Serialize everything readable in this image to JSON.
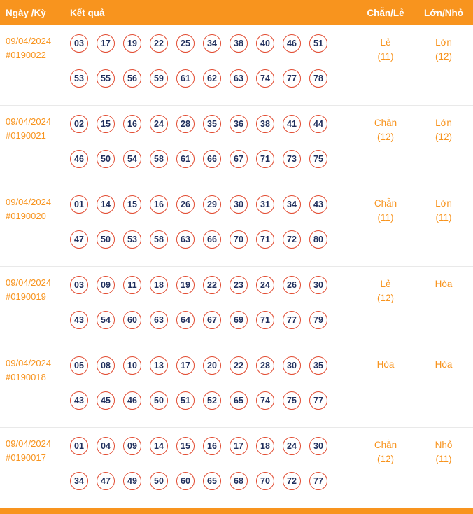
{
  "colors": {
    "accent_orange": "#f8941e",
    "ball_border_red": "#e24b31",
    "ball_number_navy": "#1f2e5c",
    "row_divider_gray": "#e9e9e9"
  },
  "header": {
    "date_col": "Ngày /Kỳ",
    "result_col": "Kết quả",
    "evenodd_col": "Chẵn/Lẻ",
    "bigsmall_col": "Lớn/Nhỏ"
  },
  "rows": [
    {
      "date": "09/04/2024",
      "period": "#0190022",
      "numbers": [
        [
          "03",
          "17",
          "19",
          "22",
          "25",
          "34",
          "38",
          "40",
          "46",
          "51"
        ],
        [
          "53",
          "55",
          "56",
          "59",
          "61",
          "62",
          "63",
          "74",
          "77",
          "78"
        ]
      ],
      "evenodd": {
        "label": "Lẻ",
        "count": "(11)"
      },
      "bigsmall": {
        "label": "Lớn",
        "count": "(12)"
      }
    },
    {
      "date": "09/04/2024",
      "period": "#0190021",
      "numbers": [
        [
          "02",
          "15",
          "16",
          "24",
          "28",
          "35",
          "36",
          "38",
          "41",
          "44"
        ],
        [
          "46",
          "50",
          "54",
          "58",
          "61",
          "66",
          "67",
          "71",
          "73",
          "75"
        ]
      ],
      "evenodd": {
        "label": "Chẵn",
        "count": "(12)"
      },
      "bigsmall": {
        "label": "Lớn",
        "count": "(12)"
      }
    },
    {
      "date": "09/04/2024",
      "period": "#0190020",
      "numbers": [
        [
          "01",
          "14",
          "15",
          "16",
          "26",
          "29",
          "30",
          "31",
          "34",
          "43"
        ],
        [
          "47",
          "50",
          "53",
          "58",
          "63",
          "66",
          "70",
          "71",
          "72",
          "80"
        ]
      ],
      "evenodd": {
        "label": "Chẵn",
        "count": "(11)"
      },
      "bigsmall": {
        "label": "Lớn",
        "count": "(11)"
      }
    },
    {
      "date": "09/04/2024",
      "period": "#0190019",
      "numbers": [
        [
          "03",
          "09",
          "11",
          "18",
          "19",
          "22",
          "23",
          "24",
          "26",
          "30"
        ],
        [
          "43",
          "54",
          "60",
          "63",
          "64",
          "67",
          "69",
          "71",
          "77",
          "79"
        ]
      ],
      "evenodd": {
        "label": "Lẻ",
        "count": "(12)"
      },
      "bigsmall": {
        "label": "Hòa",
        "count": ""
      }
    },
    {
      "date": "09/04/2024",
      "period": "#0190018",
      "numbers": [
        [
          "05",
          "08",
          "10",
          "13",
          "17",
          "20",
          "22",
          "28",
          "30",
          "35"
        ],
        [
          "43",
          "45",
          "46",
          "50",
          "51",
          "52",
          "65",
          "74",
          "75",
          "77"
        ]
      ],
      "evenodd": {
        "label": "Hòa",
        "count": ""
      },
      "bigsmall": {
        "label": "Hòa",
        "count": ""
      }
    },
    {
      "date": "09/04/2024",
      "period": "#0190017",
      "numbers": [
        [
          "01",
          "04",
          "09",
          "14",
          "15",
          "16",
          "17",
          "18",
          "24",
          "30"
        ],
        [
          "34",
          "47",
          "49",
          "50",
          "60",
          "65",
          "68",
          "70",
          "72",
          "77"
        ]
      ],
      "evenodd": {
        "label": "Chẵn",
        "count": "(12)"
      },
      "bigsmall": {
        "label": "Nhỏ",
        "count": "(11)"
      }
    }
  ]
}
